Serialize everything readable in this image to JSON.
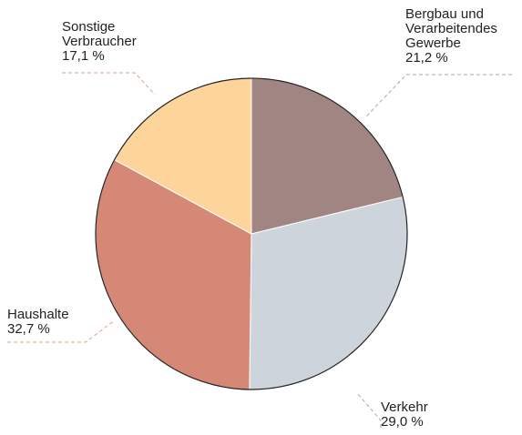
{
  "chart_data": {
    "type": "pie",
    "categories": [
      "Bergbau und Verarbeitendes Gewerbe",
      "Verkehr",
      "Haushalte",
      "Sonstige Verbraucher"
    ],
    "values": [
      21.2,
      29.0,
      32.7,
      17.1
    ],
    "value_labels": [
      "21,2 %",
      "29,0 %",
      "32,7 %",
      "17,1 %"
    ],
    "colors": [
      "#a08582",
      "#cdd4dc",
      "#d68877",
      "#fdd59a"
    ]
  }
}
